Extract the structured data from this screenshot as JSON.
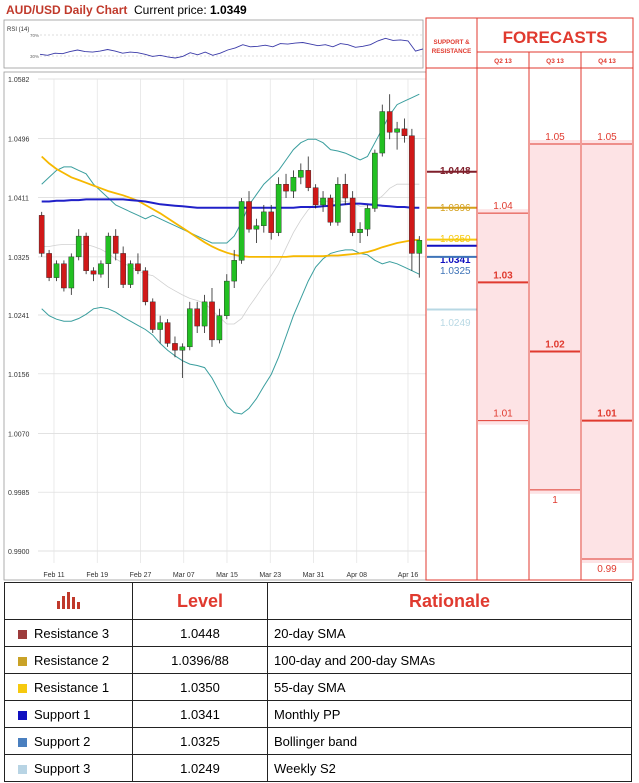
{
  "header": {
    "title": "AUD/USD Daily Chart",
    "price_label": "Current price:",
    "price": "1.0349"
  },
  "rsi": {
    "label": "RSI (14)",
    "levels": [
      "70%",
      "30%"
    ]
  },
  "sr_header": [
    "SUPPORT &",
    "RESISTANCE"
  ],
  "forecast_title": "FORECASTS",
  "colors": {
    "res3": "#7f1f2b",
    "res2": "#d4a01c",
    "res1": "#f6c90e",
    "sup1": "#1010c0",
    "sup2": "#3f74b8",
    "sup3": "#b8d8e4",
    "red": "#e03a2f",
    "bb": "#3a9e9e",
    "sma55": "#f6b800",
    "sma20": "#2020c8"
  },
  "chart_data": {
    "type": "candlestick",
    "title": "AUD/USD Daily Chart",
    "ylim": [
      0.99,
      1.0582
    ],
    "y_ticks": [
      "1.0582",
      "1.0496",
      "1.0411",
      "1.0325",
      "1.0241",
      "1.0156",
      "1.0070",
      "0.9985",
      "0.9900"
    ],
    "x_labels": [
      "Feb 11",
      "Feb 19",
      "Feb 27",
      "Mar 07",
      "Mar 15",
      "Mar 23",
      "Mar 31",
      "Apr 08",
      "Apr 16"
    ],
    "candles": [
      [
        1.0385,
        1.039,
        1.0325,
        1.033
      ],
      [
        1.033,
        1.0335,
        1.029,
        1.0295
      ],
      [
        1.0295,
        1.032,
        1.029,
        1.0315
      ],
      [
        1.0315,
        1.032,
        1.0275,
        1.028
      ],
      [
        1.028,
        1.033,
        1.027,
        1.0325
      ],
      [
        1.0325,
        1.0365,
        1.032,
        1.0355
      ],
      [
        1.0355,
        1.036,
        1.03,
        1.0305
      ],
      [
        1.0305,
        1.031,
        1.029,
        1.03
      ],
      [
        1.03,
        1.032,
        1.0295,
        1.0315
      ],
      [
        1.0315,
        1.036,
        1.028,
        1.0355
      ],
      [
        1.0355,
        1.0365,
        1.032,
        1.033
      ],
      [
        1.033,
        1.034,
        1.028,
        1.0285
      ],
      [
        1.0285,
        1.032,
        1.028,
        1.0315
      ],
      [
        1.0315,
        1.033,
        1.03,
        1.0305
      ],
      [
        1.0305,
        1.031,
        1.0255,
        1.026
      ],
      [
        1.026,
        1.0265,
        1.0215,
        1.022
      ],
      [
        1.022,
        1.024,
        1.02,
        1.023
      ],
      [
        1.023,
        1.0235,
        1.0195,
        1.02
      ],
      [
        1.02,
        1.021,
        1.018,
        1.019
      ],
      [
        1.019,
        1.02,
        1.015,
        1.0195
      ],
      [
        1.0195,
        1.026,
        1.019,
        1.025
      ],
      [
        1.025,
        1.026,
        1.0215,
        1.0225
      ],
      [
        1.0225,
        1.027,
        1.0215,
        1.026
      ],
      [
        1.026,
        1.028,
        1.0195,
        1.0205
      ],
      [
        1.0205,
        1.025,
        1.02,
        1.024
      ],
      [
        1.024,
        1.03,
        1.0235,
        1.029
      ],
      [
        1.029,
        1.0335,
        1.028,
        1.032
      ],
      [
        1.032,
        1.041,
        1.0315,
        1.0405
      ],
      [
        1.0405,
        1.042,
        1.036,
        1.0365
      ],
      [
        1.0365,
        1.038,
        1.0345,
        1.037
      ],
      [
        1.037,
        1.04,
        1.036,
        1.039
      ],
      [
        1.039,
        1.04,
        1.035,
        1.036
      ],
      [
        1.036,
        1.044,
        1.0355,
        1.043
      ],
      [
        1.043,
        1.0445,
        1.041,
        1.042
      ],
      [
        1.042,
        1.045,
        1.041,
        1.044
      ],
      [
        1.044,
        1.046,
        1.043,
        1.045
      ],
      [
        1.045,
        1.047,
        1.042,
        1.0425
      ],
      [
        1.0425,
        1.043,
        1.0395,
        1.04
      ],
      [
        1.04,
        1.042,
        1.039,
        1.041
      ],
      [
        1.041,
        1.0415,
        1.037,
        1.0375
      ],
      [
        1.0375,
        1.044,
        1.037,
        1.043
      ],
      [
        1.043,
        1.0445,
        1.04,
        1.041
      ],
      [
        1.041,
        1.042,
        1.0355,
        1.036
      ],
      [
        1.036,
        1.0375,
        1.0345,
        1.0365
      ],
      [
        1.0365,
        1.04,
        1.0355,
        1.0395
      ],
      [
        1.0395,
        1.048,
        1.039,
        1.0475
      ],
      [
        1.0475,
        1.0545,
        1.047,
        1.0535
      ],
      [
        1.0535,
        1.056,
        1.0495,
        1.0505
      ],
      [
        1.0505,
        1.052,
        1.048,
        1.051
      ],
      [
        1.051,
        1.0525,
        1.049,
        1.05
      ],
      [
        1.05,
        1.051,
        1.0305,
        1.033
      ],
      [
        1.033,
        1.0355,
        1.0295,
        1.0349
      ]
    ],
    "series": [
      {
        "name": "Bollinger upper",
        "values": [
          1.043,
          1.044,
          1.045,
          1.0455,
          1.0455,
          1.045,
          1.0445,
          1.043,
          1.042,
          1.041,
          1.04,
          1.0395,
          1.039,
          1.0385,
          1.038,
          1.0385,
          1.038,
          1.0375,
          1.037,
          1.0365,
          1.036,
          1.0355,
          1.035,
          1.0345,
          1.0345,
          1.0345,
          1.0355,
          1.0375,
          1.04,
          1.0415,
          1.043,
          1.044,
          1.045,
          1.0465,
          1.048,
          1.049,
          1.0495,
          1.0495,
          1.049,
          1.048,
          1.0478,
          1.0475,
          1.047,
          1.0465,
          1.047,
          1.049,
          1.051,
          1.053,
          1.0545,
          1.055,
          1.0555,
          1.056
        ]
      },
      {
        "name": "Bollinger lower",
        "values": [
          1.025,
          1.024,
          1.0235,
          1.0232,
          1.0232,
          1.0236,
          1.0242,
          1.025,
          1.0252,
          1.025,
          1.0245,
          1.0238,
          1.0232,
          1.0226,
          1.022,
          1.0212,
          1.02,
          1.019,
          1.0182,
          1.0175,
          1.017,
          1.0168,
          1.0165,
          1.015,
          1.013,
          1.011,
          1.01,
          1.0098,
          1.0106,
          1.012,
          1.0138,
          1.0155,
          1.018,
          1.021,
          1.024,
          1.0265,
          1.029,
          1.031,
          1.0322,
          1.033,
          1.0333,
          1.0335,
          1.0335,
          1.033,
          1.0328,
          1.032,
          1.0315,
          1.0318,
          1.0315,
          1.031,
          1.0305,
          1.03
        ]
      },
      {
        "name": "Middle band",
        "values": [
          1.034,
          1.034,
          1.0342,
          1.0343,
          1.0343,
          1.0343,
          1.0343,
          1.034,
          1.0336,
          1.033,
          1.0322,
          1.0316,
          1.0311,
          1.0305,
          1.03,
          1.0298,
          1.029,
          1.0282,
          1.0276,
          1.027,
          1.0265,
          1.0262,
          1.0258,
          1.0248,
          1.0238,
          1.0228,
          1.0228,
          1.0236,
          1.0253,
          1.0268,
          1.0284,
          1.0298,
          1.0315,
          1.0338,
          1.036,
          1.0378,
          1.0393,
          1.0403,
          1.0406,
          1.0405,
          1.0406,
          1.0405,
          1.0403,
          1.0398,
          1.0399,
          1.0405,
          1.0413,
          1.0424,
          1.043,
          1.043,
          1.043,
          1.043
        ]
      },
      {
        "name": "55-day SMA",
        "values": [
          1.047,
          1.046,
          1.0452,
          1.0446,
          1.044,
          1.0436,
          1.0432,
          1.0428,
          1.0424,
          1.042,
          1.0417,
          1.0414,
          1.041,
          1.0406,
          1.04,
          1.0394,
          1.0388,
          1.0381,
          1.0374,
          1.0367,
          1.036,
          1.0353,
          1.0346,
          1.034,
          1.0335,
          1.0331,
          1.0328,
          1.0326,
          1.0325,
          1.0325,
          1.0325,
          1.0325,
          1.0325,
          1.0325,
          1.0326,
          1.0326,
          1.0326,
          1.0326,
          1.0326,
          1.0327,
          1.0327,
          1.0328,
          1.0329,
          1.033,
          1.0332,
          1.0335,
          1.0339,
          1.0342,
          1.0345,
          1.0347,
          1.0349,
          1.035
        ]
      },
      {
        "name": "200-day SMA",
        "values": [
          1.0405,
          1.0405,
          1.0406,
          1.0406,
          1.0407,
          1.0407,
          1.0408,
          1.0408,
          1.0408,
          1.0408,
          1.0408,
          1.0408,
          1.0407,
          1.0406,
          1.0405,
          1.0403,
          1.0401,
          1.04,
          1.0399,
          1.0398,
          1.0397,
          1.0396,
          1.0396,
          1.0396,
          1.0396,
          1.0396,
          1.0396,
          1.0396,
          1.0396,
          1.0396,
          1.0396,
          1.0396,
          1.0396,
          1.0396,
          1.0396,
          1.0397,
          1.0397,
          1.0397,
          1.0398,
          1.0399,
          1.04,
          1.0401,
          1.0402,
          1.0402,
          1.0401,
          1.04,
          1.0399,
          1.0398,
          1.0397,
          1.0397,
          1.0396,
          1.0396
        ]
      },
      {
        "name": "RSI (14)",
        "values": [
          42,
          40,
          44,
          43,
          47,
          50,
          47,
          46,
          48,
          51,
          48,
          44,
          46,
          45,
          42,
          38,
          40,
          37,
          35,
          38,
          45,
          41,
          46,
          40,
          44,
          50,
          54,
          60,
          56,
          57,
          59,
          56,
          62,
          61,
          63,
          64,
          61,
          58,
          60,
          56,
          62,
          60,
          55,
          57,
          60,
          67,
          72,
          68,
          69,
          67,
          48,
          52
        ]
      }
    ],
    "levels": [
      {
        "value": 1.0448,
        "label": "1.0448",
        "color": "#7f1f2b"
      },
      {
        "value": 1.0396,
        "label": "1.0396",
        "color": "#d4a01c"
      },
      {
        "value": 1.035,
        "label": "1.0350",
        "color": "#f6c90e"
      },
      {
        "value": 1.0341,
        "label": "1.0341",
        "color": "#1010c0"
      },
      {
        "value": 1.0325,
        "label": "1.0325",
        "color": "#3f74b8"
      },
      {
        "value": 1.0249,
        "label": "1.0249",
        "color": "#b8d8e4"
      }
    ],
    "forecasts": [
      {
        "quarter": "Q2 13",
        "values": [
          {
            "v": 1.04,
            "label": "1.04",
            "bold": false
          },
          {
            "v": 1.03,
            "label": "1.03",
            "bold": true
          },
          {
            "v": 1.01,
            "label": "1.01",
            "bold": false
          }
        ]
      },
      {
        "quarter": "Q3 13",
        "values": [
          {
            "v": 1.05,
            "label": "1.05",
            "bold": false
          },
          {
            "v": 1.02,
            "label": "1.02",
            "bold": true
          },
          {
            "v": 1.0,
            "label": "1",
            "bold": false
          }
        ]
      },
      {
        "quarter": "Q4 13",
        "values": [
          {
            "v": 1.05,
            "label": "1.05",
            "bold": false
          },
          {
            "v": 1.01,
            "label": "1.01",
            "bold": true
          },
          {
            "v": 0.99,
            "label": "0.99",
            "bold": false
          }
        ]
      }
    ]
  },
  "table": {
    "head": {
      "level": "Level",
      "rationale": "Rationale"
    },
    "rows": [
      {
        "name": "Resistance 3",
        "level": "1.0448",
        "rationale": "20-day SMA",
        "color": "#9c3b3b"
      },
      {
        "name": "Resistance 2",
        "level": "1.0396/88",
        "rationale": "100-day and 200-day SMAs",
        "color": "#c9a227"
      },
      {
        "name": "Resistance 1",
        "level": "1.0350",
        "rationale": "55-day SMA",
        "color": "#f6c90e"
      },
      {
        "name": "Support 1",
        "level": "1.0341",
        "rationale": "Monthly PP",
        "color": "#1010c0"
      },
      {
        "name": "Support 2",
        "level": "1.0325",
        "rationale": "Bollinger band",
        "color": "#4a7fbf"
      },
      {
        "name": "Support 3",
        "level": "1.0249",
        "rationale": "Weekly S2",
        "color": "#b8d4e4"
      }
    ]
  }
}
